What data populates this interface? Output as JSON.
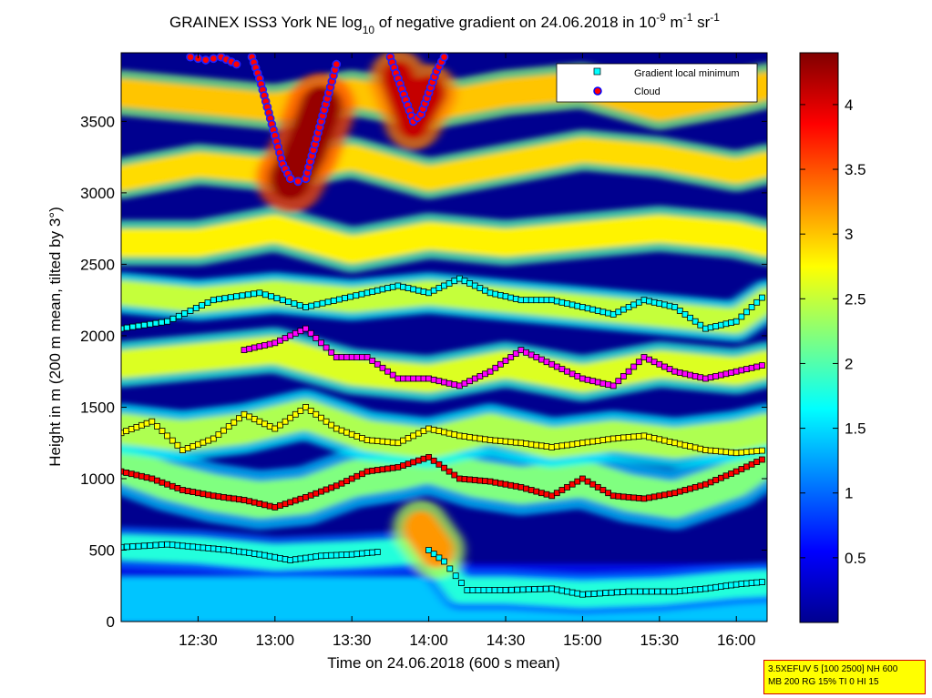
{
  "chart_data": {
    "type": "heatmap",
    "title": {
      "pre": "GRAINEX ISS3 York NE log",
      "sub": "10",
      "mid": " of negative gradient on 24.06.2018 in 10",
      "exp1": "-9",
      "mid2": " m",
      "exp2": "-1",
      "mid3": " sr",
      "exp3": "-1"
    },
    "xlabel": "Time on 24.06.2018 (600 s mean)",
    "ylabel": "Height in m (200 m mean, tilted by 3°)",
    "x_range_hours": [
      12.0,
      16.2
    ],
    "x_ticks": [
      {
        "v": 12.5,
        "label": "12:30"
      },
      {
        "v": 13.0,
        "label": "13:00"
      },
      {
        "v": 13.5,
        "label": "13:30"
      },
      {
        "v": 14.0,
        "label": "14:00"
      },
      {
        "v": 14.5,
        "label": "14:30"
      },
      {
        "v": 15.0,
        "label": "15:00"
      },
      {
        "v": 15.5,
        "label": "15:30"
      },
      {
        "v": 16.0,
        "label": "16:00"
      }
    ],
    "ylim": [
      0,
      3980
    ],
    "y_ticks": [
      {
        "v": 0,
        "label": "0"
      },
      {
        "v": 500,
        "label": "500"
      },
      {
        "v": 1000,
        "label": "1000"
      },
      {
        "v": 1500,
        "label": "1500"
      },
      {
        "v": 2000,
        "label": "2000"
      },
      {
        "v": 2500,
        "label": "2500"
      },
      {
        "v": 3000,
        "label": "3000"
      },
      {
        "v": 3500,
        "label": "3500"
      }
    ],
    "colorbar_range": [
      0,
      4.4
    ],
    "colorbar_ticks": [
      {
        "v": 0.5,
        "label": "0.5"
      },
      {
        "v": 1,
        "label": "1"
      },
      {
        "v": 1.5,
        "label": "1.5"
      },
      {
        "v": 2,
        "label": "2"
      },
      {
        "v": 2.5,
        "label": "2.5"
      },
      {
        "v": 3,
        "label": "3"
      },
      {
        "v": 3.5,
        "label": "3.5"
      },
      {
        "v": 4,
        "label": "4"
      }
    ],
    "colormap": "jet",
    "legend": {
      "position": "top-right",
      "entries": [
        {
          "label": "Gradient local minimum",
          "marker": "square",
          "color": "#00ffff"
        },
        {
          "label": "Cloud",
          "marker": "circle",
          "color": "#ff0000",
          "edge": "#0000ff"
        }
      ]
    },
    "layers": [
      {
        "name": "surface",
        "value": 1.4,
        "points": [
          [
            12.0,
            150
          ],
          [
            12.5,
            150
          ],
          [
            13.0,
            150
          ],
          [
            13.5,
            150
          ],
          [
            14.0,
            150
          ],
          [
            14.5,
            150
          ],
          [
            15.0,
            150
          ],
          [
            15.5,
            150
          ],
          [
            16.0,
            150
          ],
          [
            16.2,
            150
          ]
        ],
        "thickness": 320
      },
      {
        "name": "boundary",
        "value": 1.8,
        "points": [
          [
            12.0,
            520
          ],
          [
            12.5,
            500
          ],
          [
            13.0,
            450
          ],
          [
            13.5,
            470
          ],
          [
            14.0,
            500
          ],
          [
            14.2,
            220
          ],
          [
            14.5,
            220
          ],
          [
            15.0,
            190
          ],
          [
            15.5,
            210
          ],
          [
            16.0,
            260
          ],
          [
            16.2,
            270
          ]
        ],
        "thickness": 180
      },
      {
        "name": "layer-1000",
        "value": 2.2,
        "points": [
          [
            12.0,
            1100
          ],
          [
            12.3,
            980
          ],
          [
            12.6,
            900
          ],
          [
            12.9,
            850
          ],
          [
            13.2,
            880
          ],
          [
            13.5,
            1000
          ],
          [
            13.8,
            1050
          ],
          [
            14.0,
            1100
          ],
          [
            14.3,
            1000
          ],
          [
            14.6,
            950
          ],
          [
            15.0,
            1000
          ],
          [
            15.3,
            900
          ],
          [
            15.6,
            850
          ],
          [
            16.0,
            1000
          ],
          [
            16.2,
            1150
          ]
        ],
        "thickness": 260
      },
      {
        "name": "layer-1400",
        "value": 2.4,
        "points": [
          [
            12.0,
            1350
          ],
          [
            12.4,
            1300
          ],
          [
            12.8,
            1350
          ],
          [
            13.2,
            1450
          ],
          [
            13.6,
            1300
          ],
          [
            14.0,
            1250
          ],
          [
            14.4,
            1350
          ],
          [
            14.8,
            1250
          ],
          [
            15.2,
            1300
          ],
          [
            15.6,
            1250
          ],
          [
            16.0,
            1300
          ],
          [
            16.2,
            1350
          ]
        ],
        "thickness": 220
      },
      {
        "name": "layer-1800",
        "value": 2.6,
        "points": [
          [
            12.0,
            1800
          ],
          [
            12.5,
            1850
          ],
          [
            13.0,
            1900
          ],
          [
            13.5,
            1750
          ],
          [
            14.0,
            1700
          ],
          [
            14.5,
            1800
          ],
          [
            15.0,
            1700
          ],
          [
            15.5,
            1800
          ],
          [
            16.0,
            1750
          ],
          [
            16.2,
            1800
          ]
        ],
        "thickness": 200
      },
      {
        "name": "layer-2200",
        "value": 2.5,
        "points": [
          [
            12.0,
            2300
          ],
          [
            12.5,
            2250
          ],
          [
            13.0,
            2300
          ],
          [
            13.5,
            2250
          ],
          [
            14.0,
            2300
          ],
          [
            14.5,
            2250
          ],
          [
            15.0,
            2200
          ],
          [
            15.5,
            2150
          ],
          [
            16.0,
            2100
          ],
          [
            16.2,
            2250
          ]
        ],
        "thickness": 180
      },
      {
        "name": "layer-2700",
        "value": 2.8,
        "points": [
          [
            12.0,
            2650
          ],
          [
            12.5,
            2650
          ],
          [
            13.0,
            2750
          ],
          [
            13.5,
            2600
          ],
          [
            14.0,
            2700
          ],
          [
            14.5,
            2650
          ],
          [
            15.0,
            2700
          ],
          [
            15.5,
            2750
          ],
          [
            16.0,
            2700
          ],
          [
            16.2,
            2650
          ]
        ],
        "thickness": 200
      },
      {
        "name": "layer-3200",
        "value": 2.9,
        "points": [
          [
            12.0,
            3100
          ],
          [
            12.5,
            3200
          ],
          [
            13.0,
            3150
          ],
          [
            13.5,
            3250
          ],
          [
            14.0,
            3100
          ],
          [
            14.5,
            3200
          ],
          [
            15.0,
            3300
          ],
          [
            15.5,
            3250
          ],
          [
            16.0,
            3150
          ],
          [
            16.2,
            3200
          ]
        ],
        "thickness": 180
      },
      {
        "name": "layer-3700",
        "value": 3.0,
        "points": [
          [
            12.0,
            3700
          ],
          [
            12.5,
            3650
          ],
          [
            13.0,
            3600
          ],
          [
            13.5,
            3700
          ],
          [
            14.0,
            3600
          ],
          [
            14.5,
            3700
          ],
          [
            15.0,
            3750
          ],
          [
            15.5,
            3600
          ],
          [
            16.0,
            3700
          ],
          [
            16.2,
            3750
          ]
        ],
        "thickness": 200
      },
      {
        "name": "cloud-core",
        "value": 4.3,
        "points": [
          [
            13.1,
            3100
          ],
          [
            13.2,
            3300
          ],
          [
            13.3,
            3600
          ]
        ],
        "thickness": 300
      },
      {
        "name": "cloud-core-2",
        "value": 4.1,
        "points": [
          [
            13.8,
            3800
          ],
          [
            13.9,
            3500
          ],
          [
            14.0,
            3700
          ]
        ],
        "thickness": 250
      },
      {
        "name": "aerosol-plume",
        "value": 3.2,
        "points": [
          [
            13.95,
            650
          ],
          [
            14.05,
            500
          ]
        ],
        "thickness": 250
      }
    ],
    "gradient_minimum_tracks": [
      [
        [
          12.0,
          520
        ],
        [
          12.3,
          540
        ],
        [
          12.5,
          520
        ],
        [
          12.7,
          500
        ],
        [
          12.9,
          470
        ],
        [
          13.1,
          430
        ],
        [
          13.3,
          460
        ],
        [
          13.5,
          470
        ],
        [
          13.7,
          490
        ]
      ],
      [
        [
          14.0,
          500
        ],
        [
          14.1,
          420
        ],
        [
          14.25,
          220
        ],
        [
          14.5,
          220
        ],
        [
          14.8,
          230
        ],
        [
          15.0,
          190
        ],
        [
          15.3,
          210
        ],
        [
          15.6,
          210
        ],
        [
          15.8,
          230
        ],
        [
          16.0,
          260
        ],
        [
          16.2,
          280
        ]
      ],
      [
        [
          12.0,
          1050
        ],
        [
          12.2,
          1000
        ],
        [
          12.4,
          920
        ],
        [
          12.6,
          880
        ],
        [
          12.8,
          850
        ],
        [
          13.0,
          800
        ],
        [
          13.2,
          870
        ],
        [
          13.4,
          950
        ],
        [
          13.6,
          1050
        ],
        [
          13.8,
          1080
        ],
        [
          14.0,
          1150
        ],
        [
          14.2,
          1000
        ],
        [
          14.4,
          980
        ],
        [
          14.6,
          940
        ],
        [
          14.8,
          880
        ],
        [
          15.0,
          1000
        ],
        [
          15.2,
          880
        ],
        [
          15.4,
          860
        ],
        [
          15.6,
          900
        ],
        [
          15.8,
          960
        ],
        [
          16.0,
          1050
        ],
        [
          16.2,
          1150
        ]
      ],
      [
        [
          12.0,
          1320
        ],
        [
          12.2,
          1400
        ],
        [
          12.4,
          1200
        ],
        [
          12.6,
          1280
        ],
        [
          12.8,
          1450
        ],
        [
          13.0,
          1350
        ],
        [
          13.2,
          1500
        ],
        [
          13.4,
          1350
        ],
        [
          13.6,
          1270
        ],
        [
          13.8,
          1250
        ],
        [
          14.0,
          1350
        ],
        [
          14.2,
          1300
        ],
        [
          14.4,
          1270
        ],
        [
          14.6,
          1250
        ],
        [
          14.8,
          1220
        ],
        [
          15.0,
          1250
        ],
        [
          15.2,
          1280
        ],
        [
          15.4,
          1300
        ],
        [
          15.6,
          1250
        ],
        [
          15.8,
          1200
        ],
        [
          16.0,
          1180
        ],
        [
          16.2,
          1200
        ]
      ],
      [
        [
          12.8,
          1900
        ],
        [
          13.0,
          1950
        ],
        [
          13.2,
          2050
        ],
        [
          13.4,
          1850
        ],
        [
          13.6,
          1850
        ],
        [
          13.8,
          1700
        ],
        [
          14.0,
          1700
        ],
        [
          14.2,
          1650
        ],
        [
          14.4,
          1750
        ],
        [
          14.6,
          1900
        ],
        [
          14.8,
          1800
        ],
        [
          15.0,
          1700
        ],
        [
          15.2,
          1650
        ],
        [
          15.4,
          1850
        ],
        [
          15.6,
          1750
        ],
        [
          15.8,
          1700
        ],
        [
          16.0,
          1750
        ],
        [
          16.2,
          1800
        ]
      ],
      [
        [
          12.0,
          2050
        ],
        [
          12.3,
          2100
        ],
        [
          12.6,
          2250
        ],
        [
          12.9,
          2300
        ],
        [
          13.2,
          2200
        ],
        [
          13.6,
          2300
        ],
        [
          13.8,
          2350
        ],
        [
          14.0,
          2300
        ],
        [
          14.2,
          2400
        ],
        [
          14.4,
          2300
        ],
        [
          14.6,
          2250
        ],
        [
          14.8,
          2250
        ],
        [
          15.0,
          2200
        ],
        [
          15.2,
          2150
        ],
        [
          15.4,
          2250
        ],
        [
          15.6,
          2200
        ],
        [
          15.8,
          2050
        ],
        [
          16.0,
          2100
        ],
        [
          16.2,
          2300
        ]
      ]
    ],
    "cloud_tracks": [
      [
        [
          12.45,
          3950
        ],
        [
          12.55,
          3930
        ],
        [
          12.65,
          3950
        ],
        [
          12.75,
          3900
        ]
      ],
      [
        [
          12.85,
          3950
        ],
        [
          12.9,
          3800
        ],
        [
          12.95,
          3600
        ],
        [
          13.0,
          3400
        ],
        [
          13.05,
          3200
        ],
        [
          13.1,
          3100
        ],
        [
          13.15,
          3080
        ],
        [
          13.2,
          3100
        ],
        [
          13.25,
          3300
        ],
        [
          13.3,
          3500
        ],
        [
          13.35,
          3700
        ],
        [
          13.4,
          3900
        ]
      ],
      [
        [
          13.75,
          3950
        ],
        [
          13.8,
          3800
        ],
        [
          13.85,
          3650
        ],
        [
          13.9,
          3500
        ],
        [
          13.95,
          3550
        ],
        [
          14.0,
          3700
        ],
        [
          14.05,
          3850
        ],
        [
          14.1,
          3950
        ]
      ]
    ]
  },
  "info_box": {
    "line1": "3.5XEFUV 5 [100 2500] NH 600",
    "line2": "MB 200 RG 15% TI 0 HI 15"
  }
}
